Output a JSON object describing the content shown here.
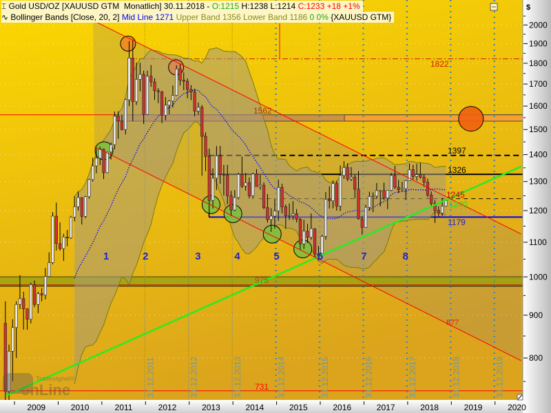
{
  "header": {
    "line1": {
      "symbol_icon": "candle-icon",
      "title": "Gold USD/OZ [XAUUSD GTM  Monatlich] 30.11.2018 - ",
      "open": "O:1215",
      "high": "H:1238",
      "low": "L:1214",
      "close": "C:1233 +18 +1%"
    },
    "line2": {
      "indicator_icon": "wave-icon",
      "title": "Bollinger Bands [Close, 20, 2]",
      "mid": "Mid Line 1271",
      "upper": "Upper Band 1356",
      "lower": "Lower Band 1186",
      "change": "0 0%",
      "symbol": "{XAUUSD GTM}"
    }
  },
  "axis": {
    "currency": "$"
  },
  "logo": {
    "top": "Tradesignal®",
    "bottom": "onLine"
  },
  "colors": {
    "up_candle": "#e8e8e8",
    "down_candle": "#d23030",
    "band_fill": "#a89a78",
    "mid_line": "#0000ff",
    "trend_green": "#22ee22",
    "channel_red": "#ff0000",
    "label_blue": "#2020d0",
    "open_color": "#1aaa1a",
    "close_color": "#ff0000"
  },
  "chart_data": {
    "type": "candlestick",
    "period": "Monatlich",
    "y_scale": "log",
    "ylim": [
      710,
      2080
    ],
    "yticks": [
      800,
      900,
      1000,
      1100,
      1200,
      1300,
      1400,
      1500,
      1600,
      1700,
      1800,
      1900,
      2000
    ],
    "xticks": [
      "2009",
      "2010",
      "2011",
      "2012",
      "2013",
      "2014",
      "2015",
      "2016",
      "2017",
      "2018",
      "2019",
      "2020"
    ],
    "grid": true,
    "bollinger": {
      "period": 20,
      "stddev": 2,
      "mid": 1271,
      "upper": 1356,
      "lower": 1186
    },
    "candles": [
      [
        "2008-10",
        880,
        935,
        681,
        730
      ],
      [
        "2008-11",
        730,
        830,
        705,
        815
      ],
      [
        "2008-12",
        815,
        890,
        750,
        870
      ],
      [
        "2009-01",
        870,
        935,
        800,
        927
      ],
      [
        "2009-02",
        927,
        1005,
        915,
        942
      ],
      [
        "2009-03",
        942,
        960,
        865,
        916
      ],
      [
        "2009-04",
        916,
        917,
        865,
        890
      ],
      [
        "2009-05",
        890,
        984,
        880,
        979
      ],
      [
        "2009-06",
        979,
        990,
        920,
        927
      ],
      [
        "2009-07",
        927,
        960,
        905,
        955
      ],
      [
        "2009-08",
        955,
        970,
        935,
        951
      ],
      [
        "2009-09",
        951,
        1025,
        940,
        1001
      ],
      [
        "2009-10",
        1001,
        1070,
        1000,
        1040
      ],
      [
        "2009-11",
        1040,
        1195,
        1035,
        1182
      ],
      [
        "2009-12",
        1182,
        1227,
        1075,
        1096
      ],
      [
        "2010-01",
        1096,
        1162,
        1075,
        1081
      ],
      [
        "2010-02",
        1081,
        1126,
        1045,
        1116
      ],
      [
        "2010-03",
        1116,
        1138,
        1088,
        1113
      ],
      [
        "2010-04",
        1113,
        1183,
        1110,
        1179
      ],
      [
        "2010-05",
        1179,
        1249,
        1165,
        1213
      ],
      [
        "2010-06",
        1213,
        1265,
        1200,
        1244
      ],
      [
        "2010-07",
        1244,
        1245,
        1155,
        1181
      ],
      [
        "2010-08",
        1181,
        1250,
        1175,
        1247
      ],
      [
        "2010-09",
        1247,
        1310,
        1240,
        1307
      ],
      [
        "2010-10",
        1307,
        1388,
        1300,
        1357
      ],
      [
        "2010-11",
        1357,
        1424,
        1330,
        1386
      ],
      [
        "2010-12",
        1386,
        1431,
        1360,
        1421
      ],
      [
        "2011-01",
        1421,
        1424,
        1309,
        1332
      ],
      [
        "2011-02",
        1332,
        1411,
        1330,
        1410
      ],
      [
        "2011-03",
        1410,
        1448,
        1381,
        1439
      ],
      [
        "2011-04",
        1439,
        1576,
        1420,
        1556
      ],
      [
        "2011-05",
        1556,
        1577,
        1462,
        1536
      ],
      [
        "2011-06",
        1536,
        1561,
        1496,
        1500
      ],
      [
        "2011-07",
        1500,
        1632,
        1480,
        1628
      ],
      [
        "2011-08",
        1628,
        1913,
        1600,
        1826
      ],
      [
        "2011-09",
        1826,
        1921,
        1535,
        1620
      ],
      [
        "2011-10",
        1620,
        1804,
        1605,
        1722
      ],
      [
        "2011-11",
        1722,
        1802,
        1666,
        1746
      ],
      [
        "2011-12",
        1746,
        1764,
        1523,
        1564
      ],
      [
        "2012-01",
        1564,
        1764,
        1562,
        1737
      ],
      [
        "2012-02",
        1737,
        1791,
        1687,
        1710
      ],
      [
        "2012-03",
        1710,
        1727,
        1627,
        1669
      ],
      [
        "2012-04",
        1669,
        1681,
        1613,
        1664
      ],
      [
        "2012-05",
        1664,
        1669,
        1527,
        1560
      ],
      [
        "2012-06",
        1560,
        1640,
        1539,
        1604
      ],
      [
        "2012-07",
        1604,
        1627,
        1564,
        1622
      ],
      [
        "2012-08",
        1622,
        1693,
        1593,
        1648
      ],
      [
        "2012-09",
        1648,
        1790,
        1645,
        1772
      ],
      [
        "2012-10",
        1772,
        1796,
        1693,
        1719
      ],
      [
        "2012-11",
        1719,
        1755,
        1672,
        1713
      ],
      [
        "2012-12",
        1713,
        1726,
        1635,
        1675
      ],
      [
        "2013-01",
        1675,
        1695,
        1626,
        1663
      ],
      [
        "2013-02",
        1663,
        1679,
        1555,
        1578
      ],
      [
        "2013-03",
        1578,
        1616,
        1562,
        1595
      ],
      [
        "2013-04",
        1595,
        1605,
        1321,
        1472
      ],
      [
        "2013-05",
        1472,
        1488,
        1338,
        1393
      ],
      [
        "2013-06",
        1393,
        1423,
        1180,
        1234
      ],
      [
        "2013-07",
        1234,
        1348,
        1207,
        1312
      ],
      [
        "2013-08",
        1312,
        1433,
        1270,
        1395
      ],
      [
        "2013-09",
        1395,
        1434,
        1292,
        1326
      ],
      [
        "2013-10",
        1326,
        1361,
        1251,
        1323
      ],
      [
        "2013-11",
        1323,
        1361,
        1221,
        1250
      ],
      [
        "2013-12",
        1250,
        1267,
        1182,
        1202
      ],
      [
        "2014-01",
        1202,
        1270,
        1198,
        1244
      ],
      [
        "2014-02",
        1244,
        1332,
        1238,
        1326
      ],
      [
        "2014-03",
        1326,
        1392,
        1277,
        1284
      ],
      [
        "2014-04",
        1284,
        1331,
        1268,
        1296
      ],
      [
        "2014-05",
        1296,
        1315,
        1241,
        1250
      ],
      [
        "2014-06",
        1250,
        1332,
        1240,
        1327
      ],
      [
        "2014-07",
        1327,
        1345,
        1282,
        1282
      ],
      [
        "2014-08",
        1282,
        1323,
        1271,
        1287
      ],
      [
        "2014-09",
        1287,
        1297,
        1205,
        1210
      ],
      [
        "2014-10",
        1210,
        1256,
        1161,
        1171
      ],
      [
        "2014-11",
        1171,
        1208,
        1132,
        1182
      ],
      [
        "2014-12",
        1182,
        1239,
        1142,
        1199
      ],
      [
        "2015-01",
        1199,
        1307,
        1167,
        1279
      ],
      [
        "2015-02",
        1279,
        1292,
        1191,
        1213
      ],
      [
        "2015-03",
        1213,
        1220,
        1142,
        1183
      ],
      [
        "2015-04",
        1183,
        1224,
        1170,
        1184
      ],
      [
        "2015-05",
        1184,
        1232,
        1170,
        1190
      ],
      [
        "2015-06",
        1190,
        1205,
        1162,
        1172
      ],
      [
        "2015-07",
        1172,
        1176,
        1077,
        1095
      ],
      [
        "2015-08",
        1095,
        1170,
        1080,
        1134
      ],
      [
        "2015-09",
        1134,
        1157,
        1098,
        1115
      ],
      [
        "2015-10",
        1115,
        1191,
        1108,
        1142
      ],
      [
        "2015-11",
        1142,
        1143,
        1052,
        1065
      ],
      [
        "2015-12",
        1065,
        1089,
        1046,
        1061
      ],
      [
        "2016-01",
        1061,
        1123,
        1060,
        1118
      ],
      [
        "2016-02",
        1118,
        1263,
        1108,
        1238
      ],
      [
        "2016-03",
        1238,
        1283,
        1207,
        1233
      ],
      [
        "2016-04",
        1233,
        1304,
        1208,
        1293
      ],
      [
        "2016-05",
        1293,
        1303,
        1200,
        1215
      ],
      [
        "2016-06",
        1215,
        1359,
        1199,
        1322
      ],
      [
        "2016-07",
        1322,
        1375,
        1310,
        1351
      ],
      [
        "2016-08",
        1351,
        1367,
        1301,
        1309
      ],
      [
        "2016-09",
        1309,
        1353,
        1302,
        1316
      ],
      [
        "2016-10",
        1316,
        1326,
        1241,
        1273
      ],
      [
        "2016-11",
        1273,
        1338,
        1171,
        1173
      ],
      [
        "2016-12",
        1173,
        1181,
        1123,
        1146
      ],
      [
        "2017-01",
        1146,
        1220,
        1145,
        1211
      ],
      [
        "2017-02",
        1211,
        1264,
        1200,
        1248
      ],
      [
        "2017-03",
        1248,
        1262,
        1195,
        1249
      ],
      [
        "2017-04",
        1249,
        1295,
        1240,
        1268
      ],
      [
        "2017-05",
        1268,
        1270,
        1214,
        1268
      ],
      [
        "2017-06",
        1268,
        1296,
        1236,
        1242
      ],
      [
        "2017-07",
        1242,
        1270,
        1205,
        1269
      ],
      [
        "2017-08",
        1269,
        1331,
        1266,
        1322
      ],
      [
        "2017-09",
        1322,
        1357,
        1274,
        1280
      ],
      [
        "2017-10",
        1280,
        1306,
        1260,
        1271
      ],
      [
        "2017-11",
        1271,
        1299,
        1264,
        1275
      ],
      [
        "2017-12",
        1275,
        1306,
        1236,
        1303
      ],
      [
        "2018-01",
        1303,
        1366,
        1302,
        1343
      ],
      [
        "2018-02",
        1343,
        1361,
        1307,
        1318
      ],
      [
        "2018-03",
        1318,
        1365,
        1303,
        1325
      ],
      [
        "2018-04",
        1325,
        1369,
        1310,
        1316
      ],
      [
        "2018-05",
        1316,
        1326,
        1282,
        1298
      ],
      [
        "2018-06",
        1298,
        1310,
        1245,
        1253
      ],
      [
        "2018-07",
        1253,
        1265,
        1211,
        1224
      ],
      [
        "2018-08",
        1224,
        1235,
        1160,
        1201
      ],
      [
        "2018-09",
        1201,
        1214,
        1180,
        1192
      ],
      [
        "2018-10",
        1192,
        1243,
        1182,
        1215
      ],
      [
        "2018-11",
        1215,
        1238,
        1214,
        1233
      ]
    ],
    "levels": [
      {
        "value": 1822,
        "label": "1822",
        "style": "dashdot",
        "color": "#cc2200",
        "from": 2011.6
      },
      {
        "value": 1562,
        "label": "1562",
        "style": "zone",
        "low": 1535,
        "color": "#b03010",
        "from": 2008.5
      },
      {
        "value": 1397,
        "label": "1397",
        "style": "dashed",
        "color": "#000000",
        "from": 2013.45
      },
      {
        "value": 1326,
        "label": "1326",
        "style": "solid",
        "color": "#000000",
        "from": 2013.45
      },
      {
        "value": 1245,
        "label": "1245",
        "style": "none",
        "color": "#cc0000",
        "from": 2018.9
      },
      {
        "value": 1240,
        "label": "1240",
        "style": "dashed",
        "color": "#000000",
        "label_color": "#22dd22",
        "from": 2014.6
      },
      {
        "value": 1179,
        "label": "1179",
        "style": "solid",
        "color": "#0000ff",
        "label_color": "#2020d0",
        "from": 2013.45
      },
      {
        "value": 1000,
        "label": "",
        "style": "solid",
        "color": "#000000",
        "from": 2008.5
      },
      {
        "value": 975,
        "label": "975",
        "style": "zone-bottom",
        "color": "#000000",
        "label_color": "#b05010",
        "from": 2008.5
      },
      {
        "value": 731,
        "label": "731",
        "style": "solid",
        "color": "#ff0000",
        "label_color": "#ff0000",
        "from": 2008.5
      }
    ],
    "trendlines": [
      {
        "name": "support",
        "from": [
          2008.8,
          721
        ],
        "to": [
          2020.6,
          1355
        ],
        "color": "#22ee22"
      },
      {
        "name": "channel-upper",
        "from": [
          2010.8,
          2025
        ],
        "to": [
          2020.6,
          1125
        ],
        "color": "#ff0000"
      },
      {
        "name": "channel-lower",
        "from": [
          2010.83,
          1431
        ],
        "to": [
          2020.6,
          794
        ],
        "color": "#ff0000",
        "label": "877"
      }
    ],
    "date_markers": [
      "31.12.2011",
      "31.12.2012",
      "31.12.2013",
      "31.12.2014",
      "31.12.2015",
      "31.12.2016",
      "31.12.2017",
      "31.12.2018",
      "31.12.2019"
    ],
    "wave_labels": [
      {
        "label": "1",
        "date": 2011.1
      },
      {
        "label": "2",
        "date": 2012.0
      },
      {
        "label": "3",
        "date": 2013.2
      },
      {
        "label": "4",
        "date": 2014.1
      },
      {
        "label": "5",
        "date": 2015.0
      },
      {
        "label": "6",
        "date": 2016.0
      },
      {
        "label": "7",
        "date": 2017.0
      },
      {
        "label": "8",
        "date": 2017.95
      }
    ],
    "markers": [
      {
        "kind": "top",
        "date": 2011.6,
        "price": 1900,
        "color": "#f08a20"
      },
      {
        "kind": "top",
        "date": 2012.7,
        "price": 1780,
        "color": "#d88850"
      },
      {
        "kind": "target",
        "date": 2019.45,
        "price": 1545,
        "color": "#f06010"
      },
      {
        "kind": "low",
        "date": 2011.05,
        "price": 1415,
        "color": "#7cc040"
      },
      {
        "kind": "low",
        "date": 2013.5,
        "price": 1220,
        "color": "#7cc040"
      },
      {
        "kind": "low",
        "date": 2014.0,
        "price": 1190,
        "color": "#7cc040"
      },
      {
        "kind": "low",
        "date": 2014.9,
        "price": 1125,
        "color": "#7cc040"
      },
      {
        "kind": "low",
        "date": 2015.6,
        "price": 1080,
        "color": "#7cc040"
      }
    ]
  }
}
